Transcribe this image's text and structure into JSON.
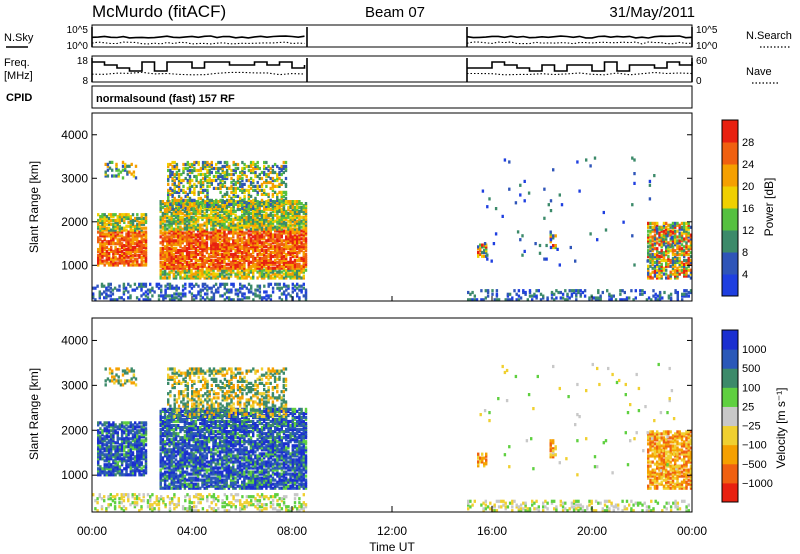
{
  "header": {
    "station": "McMurdo (fitACF)",
    "beam": "Beam 07",
    "date": "31/May/2011"
  },
  "strip_labels": {
    "nsky": "N.Sky",
    "freq_line1": "Freq.",
    "freq_line2": "[MHz]",
    "cpid": "CPID",
    "nsearch": "N.Search",
    "nave": "Nave",
    "nsky_ticks": [
      "10^5",
      "10^0"
    ],
    "freq_ticks": [
      "18",
      "8"
    ],
    "nave_ticks": [
      "60",
      "0"
    ],
    "cpid_text": "normalsound (fast) 157 RF"
  },
  "chart_data": [
    {
      "type": "heatmap",
      "name": "power",
      "ylabel": "Slant Range [km]",
      "ylim": [
        180,
        4500
      ],
      "yticks": [
        "1000",
        "2000",
        "3000",
        "4000"
      ],
      "colorbar_label": "Power [dB]",
      "colorbar_ticks": [
        "4",
        "8",
        "12",
        "16",
        "20",
        "24",
        "28"
      ],
      "colors": [
        "#1f3fe0",
        "#2f55b8",
        "#3c8a6a",
        "#55c040",
        "#f0d000",
        "#f5a000",
        "#f06010",
        "#e82010"
      ]
    },
    {
      "type": "heatmap",
      "name": "velocity",
      "ylabel": "Slant Range [km]",
      "ylim": [
        180,
        4500
      ],
      "yticks": [
        "1000",
        "2000",
        "3000",
        "4000"
      ],
      "colorbar_label": "Velocity [m s⁻¹]",
      "colorbar_ticks": [
        "1000",
        "500",
        "100",
        "25",
        "−25",
        "−100",
        "−500",
        "−1000"
      ],
      "colors": [
        "#1a2fd0",
        "#2a58b8",
        "#3c8a6a",
        "#5fd040",
        "#c8c8c8",
        "#f0d030",
        "#f5a000",
        "#f06010",
        "#e82010"
      ]
    }
  ],
  "x_axis": {
    "label": "Time UT",
    "ticks": [
      "00:00",
      "04:00",
      "08:00",
      "12:00",
      "16:00",
      "20:00",
      "00:00"
    ]
  }
}
